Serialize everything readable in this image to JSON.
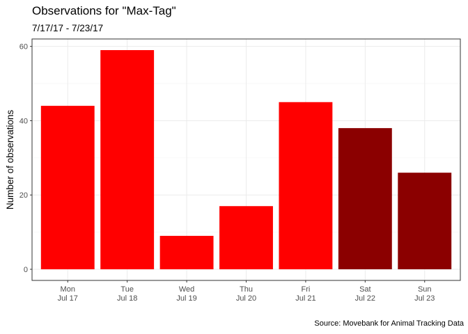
{
  "chart_data": {
    "type": "bar",
    "title": "Observations for \"Max-Tag\"",
    "subtitle": "7/17/17 - 7/23/17",
    "caption": "Source: Movebank for Animal Tracking Data",
    "xlabel": "",
    "ylabel": "Number of observations",
    "categories": [
      [
        "Mon",
        "Jul 17"
      ],
      [
        "Tue",
        "Jul 18"
      ],
      [
        "Wed",
        "Jul 19"
      ],
      [
        "Thu",
        "Jul 20"
      ],
      [
        "Fri",
        "Jul 21"
      ],
      [
        "Sat",
        "Jul 22"
      ],
      [
        "Sun",
        "Jul 23"
      ]
    ],
    "values": [
      44,
      59,
      9,
      17,
      45,
      38,
      26
    ],
    "bar_colors": [
      "#ff0000",
      "#ff0000",
      "#ff0000",
      "#ff0000",
      "#ff0000",
      "#8b0000",
      "#8b0000"
    ],
    "yticks": [
      0,
      20,
      40,
      60
    ],
    "ylim": [
      -3,
      62
    ],
    "grid": true,
    "legend": "none",
    "colors": {
      "weekday": "#ff0000",
      "weekend": "#8b0000",
      "grid_major": "#ebebeb",
      "grid_minor": "#f5f5f5",
      "panel_border": "#333333"
    }
  }
}
